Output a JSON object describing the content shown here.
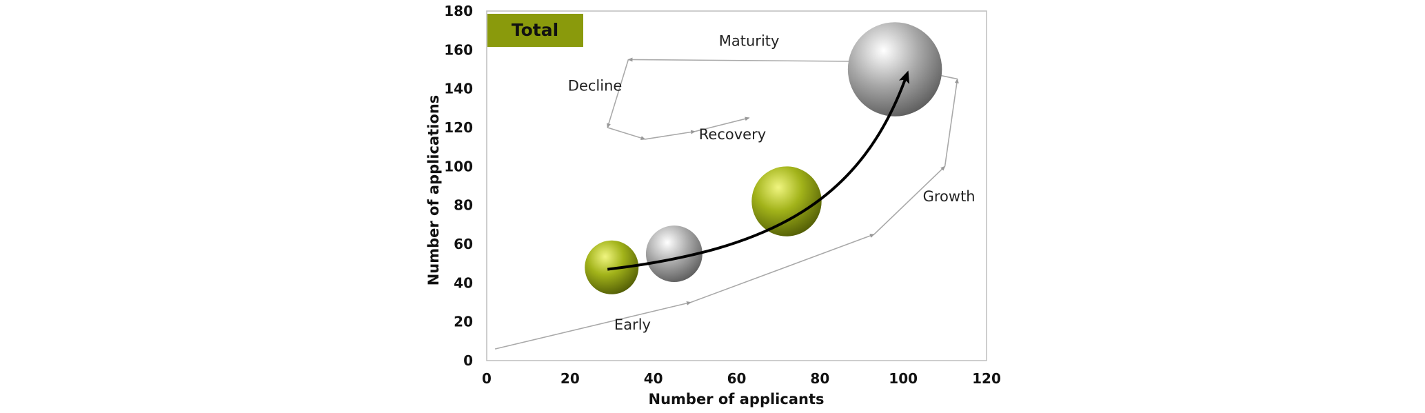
{
  "chart_data": {
    "type": "scatter",
    "title": "Total",
    "title_box_color": "#8a9a0c",
    "xlabel": "Number of applicants",
    "ylabel": "Number of applications",
    "xlim": [
      0,
      120
    ],
    "ylim": [
      0,
      180
    ],
    "xticks": [
      "0",
      "20",
      "40",
      "60",
      "80",
      "100",
      "120"
    ],
    "yticks": [
      "0",
      "20",
      "40",
      "60",
      "80",
      "100",
      "120",
      "140",
      "160",
      "180"
    ],
    "grid": false,
    "bubbles": [
      {
        "x": 30,
        "y": 48,
        "size": 1.0,
        "color": "olive"
      },
      {
        "x": 45,
        "y": 55,
        "size": 1.05,
        "color": "gray"
      },
      {
        "x": 72,
        "y": 82,
        "size": 1.3,
        "color": "olive"
      },
      {
        "x": 98,
        "y": 150,
        "size": 1.75,
        "color": "gray"
      }
    ],
    "trend_arrow": {
      "from": [
        29,
        47
      ],
      "to": [
        101,
        148
      ],
      "color": "#000000"
    },
    "phases": [
      {
        "label": "Early",
        "x": 35,
        "y": 16
      },
      {
        "label": "Growth",
        "x": 111,
        "y": 82
      },
      {
        "label": "Maturity",
        "x": 63,
        "y": 162
      },
      {
        "label": "Decline",
        "x": 26,
        "y": 139
      },
      {
        "label": "Recovery",
        "x": 59,
        "y": 114
      }
    ],
    "lifecycle_path": [
      [
        2,
        6
      ],
      [
        49,
        30
      ],
      [
        93,
        65
      ],
      [
        110,
        100
      ],
      [
        113,
        145
      ],
      [
        93,
        154
      ],
      [
        34,
        155
      ],
      [
        29,
        120
      ],
      [
        38,
        114
      ],
      [
        50,
        118
      ],
      [
        63,
        125
      ]
    ],
    "colors": {
      "olive_light": "#f0f580",
      "olive_mid": "#a2b31a",
      "olive_dark": "#4f5a05",
      "gray_light": "#ffffff",
      "gray_mid": "#a8a8a8",
      "gray_dark": "#5a5a5a",
      "path": "#a9a9a9",
      "frame": "#bdbdbd"
    }
  }
}
